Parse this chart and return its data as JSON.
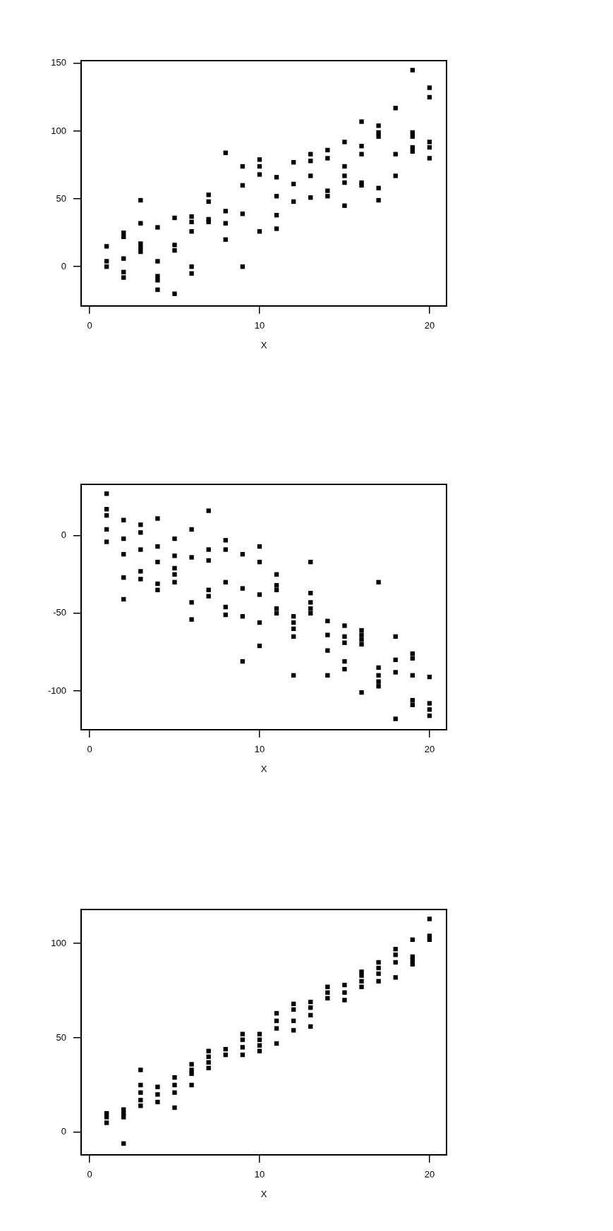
{
  "chart_data": [
    {
      "type": "scatter",
      "xlabel": "X",
      "color": "#000000",
      "marker": "square",
      "grid": false,
      "legend": false,
      "xlim": [
        -0.5,
        21
      ],
      "xticks": [
        0,
        10,
        20
      ],
      "ylim": [
        -29,
        152
      ],
      "yticks": [
        0,
        50,
        100,
        150
      ],
      "x": [
        1,
        1,
        1,
        2,
        2,
        2,
        2,
        2,
        3,
        3,
        3,
        3,
        3,
        4,
        4,
        4,
        4,
        4,
        5,
        5,
        5,
        5,
        6,
        6,
        6,
        6,
        6,
        7,
        7,
        7,
        7,
        8,
        8,
        8,
        8,
        9,
        9,
        9,
        9,
        10,
        10,
        10,
        10,
        11,
        11,
        11,
        11,
        12,
        12,
        12,
        13,
        13,
        13,
        13,
        14,
        14,
        14,
        14,
        15,
        15,
        15,
        15,
        15,
        16,
        16,
        16,
        16,
        16,
        17,
        17,
        17,
        17,
        17,
        18,
        18,
        18,
        19,
        19,
        19,
        19,
        19,
        20,
        20,
        20,
        20,
        20
      ],
      "values": [
        15,
        4,
        0,
        25,
        22,
        6,
        -4,
        -8,
        49,
        32,
        17,
        14,
        11,
        29,
        4,
        -7,
        -10,
        -17,
        36,
        16,
        12,
        -20,
        37,
        33,
        26,
        0,
        -5,
        53,
        48,
        35,
        33,
        84,
        41,
        32,
        20,
        74,
        60,
        39,
        0,
        79,
        74,
        68,
        26,
        66,
        52,
        38,
        28,
        77,
        61,
        48,
        83,
        78,
        67,
        51,
        86,
        80,
        56,
        52,
        92,
        74,
        67,
        62,
        45,
        107,
        89,
        83,
        62,
        60,
        104,
        99,
        96,
        58,
        49,
        117,
        83,
        67,
        145,
        99,
        96,
        88,
        85,
        132,
        125,
        92,
        88,
        80
      ]
    },
    {
      "type": "scatter",
      "xlabel": "X",
      "color": "#000000",
      "marker": "square",
      "grid": false,
      "legend": false,
      "xlim": [
        -0.5,
        21
      ],
      "xticks": [
        0,
        10,
        20
      ],
      "ylim": [
        -125,
        33
      ],
      "yticks": [
        -100,
        -50,
        0
      ],
      "x": [
        1,
        1,
        1,
        1,
        1,
        2,
        2,
        2,
        2,
        2,
        3,
        3,
        3,
        3,
        3,
        4,
        4,
        4,
        4,
        4,
        5,
        5,
        5,
        5,
        5,
        6,
        6,
        6,
        6,
        7,
        7,
        7,
        7,
        7,
        8,
        8,
        8,
        8,
        8,
        9,
        9,
        9,
        9,
        10,
        10,
        10,
        10,
        10,
        11,
        11,
        11,
        11,
        11,
        12,
        12,
        12,
        12,
        12,
        13,
        13,
        13,
        13,
        13,
        14,
        14,
        14,
        14,
        15,
        15,
        15,
        15,
        15,
        16,
        16,
        16,
        16,
        16,
        17,
        17,
        17,
        17,
        17,
        18,
        18,
        18,
        18,
        19,
        19,
        19,
        19,
        19,
        20,
        20,
        20,
        20
      ],
      "values": [
        27,
        17,
        13,
        4,
        -4,
        10,
        -2,
        -12,
        -27,
        -41,
        7,
        2,
        -9,
        -23,
        -28,
        11,
        -7,
        -17,
        -31,
        -35,
        -2,
        -13,
        -21,
        -25,
        -30,
        4,
        -14,
        -43,
        -54,
        16,
        -9,
        -16,
        -35,
        -39,
        -3,
        -9,
        -30,
        -46,
        -51,
        -12,
        -34,
        -52,
        -81,
        -7,
        -17,
        -38,
        -56,
        -71,
        -25,
        -32,
        -35,
        -47,
        -50,
        -52,
        -56,
        -60,
        -65,
        -90,
        -17,
        -37,
        -43,
        -47,
        -50,
        -55,
        -64,
        -74,
        -90,
        -58,
        -65,
        -69,
        -81,
        -86,
        -61,
        -64,
        -67,
        -70,
        -101,
        -30,
        -85,
        -90,
        -94,
        -97,
        -65,
        -80,
        -88,
        -118,
        -76,
        -79,
        -90,
        -106,
        -109,
        -91,
        -108,
        -112,
        -116
      ]
    },
    {
      "type": "scatter",
      "xlabel": "X",
      "color": "#000000",
      "marker": "square",
      "grid": false,
      "legend": false,
      "xlim": [
        -0.5,
        21
      ],
      "xticks": [
        0,
        10,
        20
      ],
      "ylim": [
        -12,
        118
      ],
      "yticks": [
        0,
        50,
        100
      ],
      "x": [
        1,
        1,
        1,
        2,
        2,
        2,
        2,
        3,
        3,
        3,
        3,
        3,
        4,
        4,
        4,
        5,
        5,
        5,
        5,
        6,
        6,
        6,
        6,
        7,
        7,
        7,
        7,
        8,
        8,
        9,
        9,
        9,
        9,
        10,
        10,
        10,
        10,
        11,
        11,
        11,
        11,
        12,
        12,
        12,
        12,
        13,
        13,
        13,
        13,
        14,
        14,
        14,
        15,
        15,
        15,
        16,
        16,
        16,
        16,
        17,
        17,
        17,
        17,
        18,
        18,
        18,
        18,
        19,
        19,
        19,
        19,
        20,
        20,
        20
      ],
      "values": [
        10,
        8,
        5,
        12,
        10,
        8,
        -6,
        33,
        25,
        21,
        17,
        14,
        24,
        20,
        16,
        29,
        25,
        21,
        13,
        36,
        33,
        31,
        25,
        43,
        40,
        37,
        34,
        44,
        41,
        52,
        49,
        45,
        41,
        52,
        49,
        46,
        43,
        63,
        59,
        55,
        47,
        68,
        65,
        59,
        54,
        69,
        66,
        62,
        56,
        77,
        74,
        71,
        78,
        74,
        70,
        85,
        83,
        80,
        77,
        90,
        87,
        84,
        80,
        97,
        94,
        90,
        82,
        102,
        93,
        91,
        89,
        113,
        104,
        102
      ]
    }
  ]
}
